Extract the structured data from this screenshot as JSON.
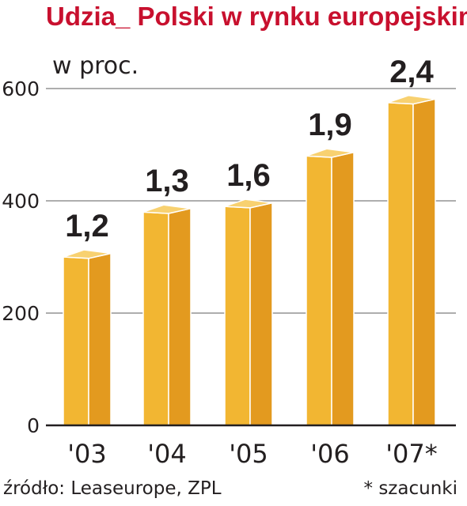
{
  "title": "Udzia_ Polski w rynku europejskim",
  "unit_label": "w proc.",
  "source": "źródło: Leaseurope, ZPL",
  "footnote": "* szacunki",
  "colors": {
    "title": "#c8102e",
    "bar_front": "#f2b632",
    "bar_side": "#e39a1f",
    "bar_top": "#f8d170",
    "bar_edge": "#ffffff",
    "grid": "#7d7d7d",
    "text": "#231f20"
  },
  "chart_data": {
    "type": "bar",
    "categories": [
      "'03",
      "'04",
      "'05",
      "'06",
      "'07*"
    ],
    "values": [
      300,
      380,
      390,
      480,
      575
    ],
    "data_labels": [
      "1,2",
      "1,3",
      "1,6",
      "1,9",
      "2,4"
    ],
    "y_ticks": [
      0,
      200,
      400,
      600
    ],
    "ylim": [
      0,
      600
    ],
    "grid": true,
    "bar_style": "3d"
  }
}
